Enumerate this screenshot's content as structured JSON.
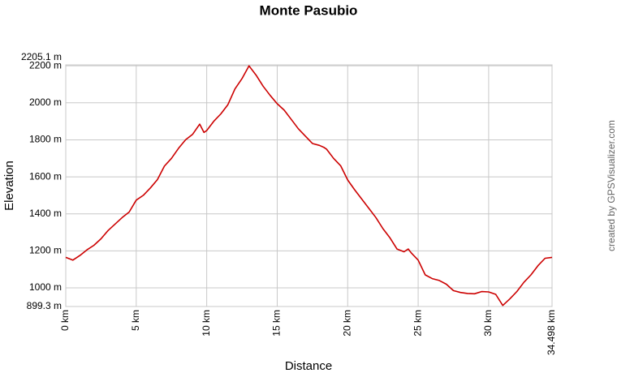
{
  "chart_data": {
    "type": "line",
    "title": "Monte Pasubio",
    "x_label": "Distance",
    "y_label": "Elevation",
    "credit": "created by GPSVisualizer.com",
    "color": "#cc0000",
    "grid": true,
    "xlim": [
      0,
      34.498
    ],
    "ylim": [
      899.3,
      2205.1
    ],
    "xticks": [
      {
        "value": 0,
        "label": "0 km"
      },
      {
        "value": 5,
        "label": "5 km"
      },
      {
        "value": 10,
        "label": "10 km"
      },
      {
        "value": 15,
        "label": "15 km"
      },
      {
        "value": 20,
        "label": "20 km"
      },
      {
        "value": 25,
        "label": "25 km"
      },
      {
        "value": 30,
        "label": "30 km"
      },
      {
        "value": 34.498,
        "label": "34.498 km"
      }
    ],
    "yticks": [
      {
        "value": 899.3,
        "label": "899.3 m"
      },
      {
        "value": 1000,
        "label": "1000 m"
      },
      {
        "value": 1200,
        "label": "1200 m"
      },
      {
        "value": 1400,
        "label": "1400 m"
      },
      {
        "value": 1600,
        "label": "1600 m"
      },
      {
        "value": 1800,
        "label": "1800 m"
      },
      {
        "value": 2000,
        "label": "2000 m"
      },
      {
        "value": 2200,
        "label": "2200 m"
      },
      {
        "value": 2205.1,
        "label": "2205.1 m"
      }
    ],
    "x": [
      0,
      0.5,
      1,
      1.5,
      2,
      2.5,
      3,
      3.5,
      4,
      4.5,
      5,
      5.5,
      6,
      6.5,
      7,
      7.5,
      8,
      8.5,
      9,
      9.5,
      9.8,
      10,
      10.5,
      11,
      11.5,
      12,
      12.5,
      13,
      13.5,
      14,
      14.5,
      15,
      15.5,
      16,
      16.5,
      17,
      17.5,
      18,
      18.3,
      18.5,
      19,
      19.5,
      20,
      20.5,
      21,
      21.5,
      22,
      22.5,
      23,
      23.5,
      24,
      24.3,
      24.5,
      25,
      25.5,
      26,
      26.5,
      27,
      27.5,
      28,
      28.5,
      29,
      29.5,
      30,
      30.5,
      31,
      31.5,
      32,
      32.5,
      33,
      33.5,
      34,
      34.498
    ],
    "values": [
      1165,
      1150,
      1175,
      1205,
      1230,
      1265,
      1310,
      1345,
      1380,
      1410,
      1474,
      1500,
      1540,
      1585,
      1658,
      1700,
      1754,
      1800,
      1830,
      1885,
      1840,
      1850,
      1900,
      1940,
      1990,
      2075,
      2130,
      2200,
      2150,
      2090,
      2040,
      1995,
      1960,
      1910,
      1860,
      1820,
      1780,
      1770,
      1760,
      1750,
      1700,
      1660,
      1583,
      1530,
      1480,
      1430,
      1380,
      1320,
      1270,
      1210,
      1195,
      1210,
      1190,
      1150,
      1070,
      1050,
      1040,
      1020,
      985,
      975,
      970,
      968,
      980,
      978,
      965,
      905,
      940,
      980,
      1030,
      1070,
      1120,
      1160,
      1165
    ]
  }
}
